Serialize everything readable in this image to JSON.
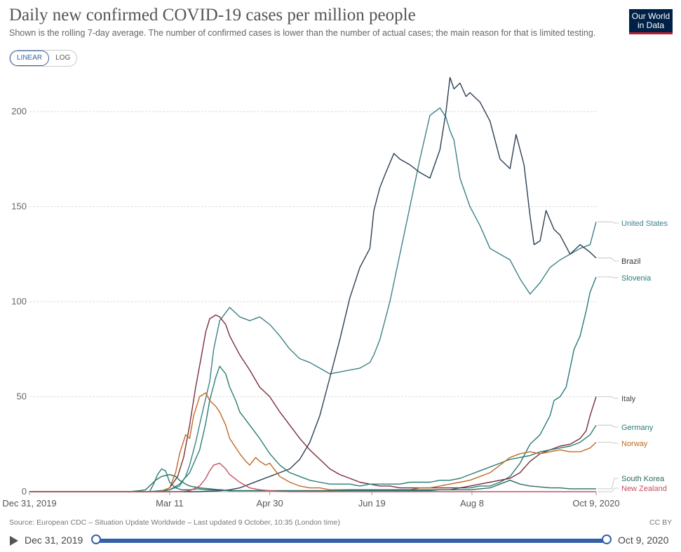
{
  "header": {
    "title": "Daily new confirmed COVID-19 cases per million people",
    "subtitle": "Shown is the rolling 7-day average. The number of confirmed cases is lower than the number of actual cases; the main reason for that is limited testing.",
    "logo_line1": "Our World",
    "logo_line2": "in Data"
  },
  "controls": {
    "linear_label": "LINEAR",
    "log_label": "LOG",
    "active": "linear"
  },
  "footer": {
    "source": "Source: European CDC – Situation Update Worldwide – Last updated 9 October, 10:35 (London time)",
    "license": "CC BY"
  },
  "timeline": {
    "start_label": "Dec 31, 2019",
    "end_label": "Oct 9, 2020"
  },
  "colors": {
    "united_states": "#3c8287",
    "brazil": "#2d3e50",
    "slovenia": "#267b78",
    "italy": "#7b2d3a",
    "germany": "#287e72",
    "norway": "#c06a24",
    "south_korea": "#2a6e5e",
    "new_zealand": "#c45060",
    "grid": "#dddddd",
    "axis": "#999999"
  },
  "chart_data": {
    "type": "line",
    "title": "Daily new confirmed COVID-19 cases per million people",
    "xlabel": "",
    "ylabel": "",
    "x_unit": "days since Dec 31, 2019",
    "xlim": [
      0,
      283
    ],
    "ylim": [
      0,
      220
    ],
    "yticks": [
      0,
      50,
      100,
      150,
      200
    ],
    "ytick_labels": [
      "0",
      "50",
      "100",
      "150",
      "200"
    ],
    "xticks": [
      0,
      70,
      120,
      171,
      221,
      283
    ],
    "xtick_labels": [
      "Dec 31, 2019",
      "Mar 11",
      "Apr 30",
      "Jun 19",
      "Aug 8",
      "Oct 9, 2020"
    ],
    "grid": true,
    "series": [
      {
        "name": "United States",
        "key": "united_states",
        "x": [
          0,
          55,
          60,
          65,
          70,
          75,
          78,
          80,
          83,
          86,
          90,
          92,
          95,
          100,
          105,
          110,
          115,
          120,
          125,
          130,
          135,
          140,
          145,
          150,
          155,
          160,
          165,
          170,
          172,
          175,
          180,
          185,
          190,
          195,
          200,
          205,
          208,
          210,
          212,
          215,
          220,
          225,
          230,
          235,
          240,
          245,
          250,
          255,
          260,
          265,
          270,
          275,
          280,
          283
        ],
        "y": [
          0,
          0,
          0,
          0.5,
          1,
          3,
          8,
          14,
          26,
          40,
          58,
          75,
          90,
          97,
          92,
          90,
          92,
          88,
          82,
          75,
          70,
          68,
          65,
          62,
          63,
          64,
          65,
          68,
          72,
          80,
          100,
          125,
          150,
          175,
          198,
          202,
          197,
          190,
          185,
          165,
          150,
          140,
          128,
          125,
          122,
          112,
          104,
          110,
          118,
          122,
          125,
          128,
          130,
          142
        ]
      },
      {
        "name": "Brazil",
        "key": "brazil",
        "x": [
          0,
          75,
          85,
          95,
          100,
          105,
          110,
          115,
          120,
          125,
          130,
          135,
          140,
          145,
          150,
          155,
          160,
          165,
          170,
          172,
          175,
          178,
          182,
          185,
          190,
          195,
          200,
          205,
          208,
          210,
          212,
          215,
          218,
          220,
          225,
          230,
          235,
          240,
          243,
          247,
          250,
          252,
          255,
          258,
          262,
          265,
          270,
          275,
          280,
          283
        ],
        "y": [
          0,
          0,
          0,
          0.5,
          1,
          2,
          4,
          6,
          8,
          10,
          12,
          17,
          26,
          40,
          60,
          80,
          102,
          118,
          128,
          148,
          160,
          168,
          178,
          175,
          172,
          168,
          165,
          180,
          200,
          218,
          212,
          215,
          208,
          210,
          205,
          195,
          175,
          170,
          188,
          172,
          145,
          130,
          132,
          148,
          138,
          135,
          125,
          130,
          126,
          123
        ]
      },
      {
        "name": "Slovenia",
        "key": "slovenia",
        "x": [
          0,
          60,
          62,
          64,
          66,
          68,
          70,
          73,
          76,
          80,
          84,
          88,
          92,
          96,
          100,
          104,
          108,
          112,
          115,
          120,
          125,
          130,
          135,
          140,
          145,
          150,
          155,
          160,
          165,
          170,
          175,
          180,
          185,
          190,
          195,
          200,
          205,
          210,
          215,
          220,
          225,
          230,
          235,
          240,
          245,
          250,
          255,
          260,
          262,
          265,
          268,
          270,
          272,
          275,
          278,
          280,
          283
        ],
        "y": [
          0,
          0,
          4,
          9,
          12,
          11,
          5,
          2,
          1,
          1,
          1.5,
          1,
          1,
          1,
          0.5,
          0.5,
          0.5,
          0.5,
          0.5,
          0.5,
          0.5,
          0.5,
          0.5,
          0.5,
          0.5,
          0.5,
          0.5,
          0.5,
          0.5,
          0.5,
          0.5,
          0.5,
          0.5,
          0.5,
          0.5,
          0.5,
          1,
          1,
          2,
          2,
          3,
          3,
          5,
          8,
          15,
          25,
          30,
          40,
          48,
          50,
          55,
          65,
          75,
          82,
          95,
          105,
          113
        ]
      },
      {
        "name": "Italy",
        "key": "italy",
        "x": [
          0,
          65,
          70,
          74,
          77,
          80,
          83,
          86,
          88,
          90,
          93,
          95,
          98,
          100,
          105,
          110,
          115,
          120,
          125,
          130,
          135,
          140,
          145,
          150,
          155,
          160,
          165,
          170,
          175,
          180,
          185,
          190,
          195,
          200,
          205,
          210,
          215,
          220,
          225,
          230,
          235,
          240,
          245,
          250,
          255,
          260,
          265,
          270,
          275,
          278,
          280,
          283
        ],
        "y": [
          0,
          0,
          2,
          8,
          18,
          35,
          55,
          72,
          84,
          91,
          93,
          92,
          88,
          82,
          72,
          64,
          55,
          50,
          42,
          35,
          28,
          22,
          17,
          12,
          9,
          7,
          5,
          4,
          3,
          3,
          2,
          2,
          2,
          2,
          2,
          2,
          2,
          3,
          4,
          5,
          6,
          7,
          10,
          16,
          20,
          22,
          24,
          25,
          28,
          32,
          40,
          50
        ]
      },
      {
        "name": "Germany",
        "key": "germany",
        "x": [
          0,
          65,
          70,
          75,
          80,
          85,
          88,
          90,
          93,
          95,
          98,
          100,
          103,
          105,
          110,
          115,
          120,
          125,
          130,
          135,
          140,
          145,
          150,
          155,
          160,
          165,
          170,
          175,
          180,
          185,
          190,
          195,
          200,
          205,
          210,
          215,
          220,
          225,
          230,
          235,
          240,
          245,
          250,
          255,
          260,
          265,
          270,
          275,
          280,
          283
        ],
        "y": [
          0,
          0,
          1,
          4,
          10,
          22,
          36,
          48,
          60,
          66,
          62,
          55,
          48,
          42,
          35,
          28,
          20,
          14,
          10,
          8,
          6,
          5,
          4,
          4,
          4,
          3,
          4,
          4,
          4,
          4,
          5,
          5,
          5,
          6,
          6,
          7,
          9,
          11,
          13,
          15,
          17,
          18,
          19,
          21,
          22,
          23,
          24,
          26,
          30,
          35
        ]
      },
      {
        "name": "Norway",
        "key": "norway",
        "x": [
          0,
          65,
          70,
          73,
          75,
          78,
          80,
          82,
          85,
          88,
          90,
          93,
          95,
          98,
          100,
          105,
          108,
          110,
          113,
          115,
          118,
          120,
          125,
          130,
          135,
          140,
          145,
          150,
          155,
          160,
          165,
          170,
          175,
          180,
          185,
          190,
          195,
          200,
          205,
          210,
          215,
          220,
          225,
          230,
          235,
          240,
          245,
          250,
          255,
          260,
          265,
          270,
          275,
          280,
          283
        ],
        "y": [
          0,
          0,
          2,
          10,
          20,
          30,
          28,
          40,
          50,
          52,
          48,
          45,
          42,
          35,
          28,
          20,
          16,
          14,
          18,
          16,
          14,
          15,
          8,
          5,
          3,
          2,
          2,
          1,
          1,
          1,
          1,
          1,
          1,
          1,
          1,
          1,
          2,
          2,
          3,
          4,
          5,
          6,
          8,
          10,
          14,
          18,
          20,
          21,
          20,
          21,
          22,
          21,
          21,
          23,
          26
        ]
      },
      {
        "name": "South Korea",
        "key": "south_korea",
        "x": [
          0,
          50,
          55,
          58,
          60,
          63,
          66,
          70,
          73,
          75,
          78,
          80,
          85,
          90,
          95,
          100,
          110,
          120,
          130,
          140,
          150,
          160,
          170,
          180,
          190,
          200,
          210,
          220,
          230,
          235,
          240,
          245,
          250,
          255,
          260,
          265,
          270,
          275,
          280,
          283
        ],
        "y": [
          0,
          0,
          0.5,
          1,
          3,
          6,
          8,
          9,
          8,
          6,
          4,
          3,
          2,
          1.5,
          1,
          0.5,
          0.5,
          0.5,
          0.5,
          0.5,
          0.5,
          1,
          1,
          1,
          1,
          1,
          1,
          1,
          2,
          4,
          6,
          4,
          3,
          2.5,
          2,
          2,
          1.5,
          1.5,
          1.5,
          1.5
        ]
      },
      {
        "name": "New Zealand",
        "key": "new_zealand",
        "x": [
          0,
          75,
          80,
          85,
          88,
          90,
          92,
          95,
          98,
          100,
          105,
          110,
          115,
          120,
          125,
          130,
          283
        ],
        "y": [
          0,
          0,
          0.5,
          3,
          7,
          11,
          14,
          15,
          12,
          9,
          5,
          2,
          1,
          0.5,
          0.2,
          0,
          0
        ]
      }
    ]
  }
}
